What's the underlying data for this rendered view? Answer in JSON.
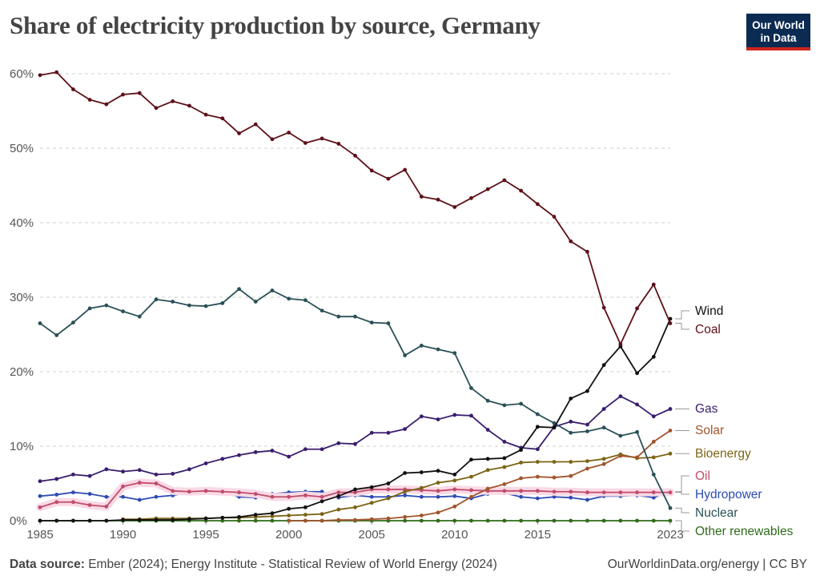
{
  "header": {
    "title": "Share of electricity production by source, Germany",
    "logo_line1": "Our World",
    "logo_line2": "in Data"
  },
  "footer": {
    "source_label": "Data source:",
    "source_text": "Ember (2024); Energy Institute - Statistical Review of World Energy (2024)",
    "credit": "OurWorldinData.org/energy | CC BY"
  },
  "colors": {
    "Coal": "#5e1019",
    "Wind": "#111111",
    "Gas": "#3a1d6e",
    "Solar": "#a0552b",
    "Bioenergy": "#7b6414",
    "Oil": "#c14c6a",
    "Hydropower": "#2c4bb5",
    "Nuclear": "#2a5058",
    "Other renewables": "#2f6b19"
  },
  "chart_data": {
    "type": "line",
    "title": "Share of electricity production by source, Germany",
    "xlabel": "",
    "ylabel": "",
    "xlim": [
      1985,
      2023
    ],
    "ylim": [
      0,
      60
    ],
    "y_ticks": [
      0,
      10,
      20,
      30,
      40,
      50,
      60
    ],
    "y_tick_labels": [
      "0%",
      "10%",
      "20%",
      "30%",
      "40%",
      "50%",
      "60%"
    ],
    "x_ticks": [
      1985,
      1990,
      1995,
      2000,
      2005,
      2010,
      2015,
      2023
    ],
    "x_tick_labels": [
      "1985",
      "1990",
      "1995",
      "2000",
      "2005",
      "2010",
      "2015",
      "2023"
    ],
    "grid": "horizontal dashed",
    "legend": "right, labels at line ends",
    "series": [
      {
        "name": "Coal",
        "x": [
          1985,
          1986,
          1987,
          1988,
          1989,
          1990,
          1991,
          1992,
          1993,
          1994,
          1995,
          1996,
          1997,
          1998,
          1999,
          2000,
          2001,
          2002,
          2003,
          2004,
          2005,
          2006,
          2007,
          2008,
          2009,
          2010,
          2011,
          2012,
          2013,
          2014,
          2015,
          2016,
          2017,
          2018,
          2019,
          2020,
          2021,
          2022,
          2023
        ],
        "values": [
          59.8,
          60.2,
          57.9,
          56.5,
          55.9,
          57.2,
          57.4,
          55.4,
          56.3,
          55.7,
          54.5,
          54.0,
          52.0,
          53.2,
          51.2,
          52.1,
          50.7,
          51.3,
          50.6,
          49.0,
          47.0,
          45.9,
          47.1,
          43.5,
          43.1,
          42.1,
          43.3,
          44.5,
          45.7,
          44.3,
          42.5,
          40.8,
          37.5,
          36.1,
          28.6,
          23.7,
          28.5,
          31.7,
          26.5
        ]
      },
      {
        "name": "Wind",
        "x": [
          1985,
          1986,
          1987,
          1988,
          1989,
          1990,
          1991,
          1992,
          1993,
          1994,
          1995,
          1996,
          1997,
          1998,
          1999,
          2000,
          2001,
          2002,
          2003,
          2004,
          2005,
          2006,
          2007,
          2008,
          2009,
          2010,
          2011,
          2012,
          2013,
          2014,
          2015,
          2016,
          2017,
          2018,
          2019,
          2020,
          2021,
          2022,
          2023
        ],
        "values": [
          0,
          0,
          0,
          0,
          0,
          0.1,
          0.1,
          0.1,
          0.1,
          0.2,
          0.3,
          0.4,
          0.5,
          0.8,
          1.0,
          1.6,
          1.8,
          2.6,
          3.3,
          4.2,
          4.5,
          5.0,
          6.4,
          6.5,
          6.7,
          6.2,
          8.2,
          8.3,
          8.4,
          9.5,
          12.6,
          12.5,
          16.4,
          17.4,
          20.9,
          23.4,
          19.8,
          22.0,
          27.1
        ]
      },
      {
        "name": "Gas",
        "x": [
          1985,
          1986,
          1987,
          1988,
          1989,
          1990,
          1991,
          1992,
          1993,
          1994,
          1995,
          1996,
          1997,
          1998,
          1999,
          2000,
          2001,
          2002,
          2003,
          2004,
          2005,
          2006,
          2007,
          2008,
          2009,
          2010,
          2011,
          2012,
          2013,
          2014,
          2015,
          2016,
          2017,
          2018,
          2019,
          2020,
          2021,
          2022,
          2023
        ],
        "values": [
          5.3,
          5.6,
          6.2,
          6.0,
          6.9,
          6.6,
          6.8,
          6.2,
          6.3,
          6.9,
          7.7,
          8.3,
          8.8,
          9.2,
          9.4,
          8.6,
          9.6,
          9.6,
          10.4,
          10.3,
          11.8,
          11.8,
          12.3,
          14.0,
          13.6,
          14.2,
          14.1,
          12.2,
          10.6,
          9.8,
          9.6,
          12.6,
          13.3,
          12.9,
          15.0,
          16.7,
          15.6,
          14.0,
          15.0
        ]
      },
      {
        "name": "Solar",
        "x": [
          2000,
          2001,
          2002,
          2003,
          2004,
          2005,
          2006,
          2007,
          2008,
          2009,
          2010,
          2011,
          2012,
          2013,
          2014,
          2015,
          2016,
          2017,
          2018,
          2019,
          2020,
          2021,
          2022,
          2023
        ],
        "values": [
          0,
          0,
          0,
          0.1,
          0.1,
          0.2,
          0.3,
          0.5,
          0.7,
          1.1,
          1.9,
          3.2,
          4.3,
          4.9,
          5.7,
          5.9,
          5.8,
          6.0,
          7.0,
          7.6,
          8.7,
          8.5,
          10.6,
          12.1
        ]
      },
      {
        "name": "Bioenergy",
        "x": [
          1990,
          1991,
          1992,
          1993,
          1994,
          1995,
          1996,
          1997,
          1998,
          1999,
          2000,
          2001,
          2002,
          2003,
          2004,
          2005,
          2006,
          2007,
          2008,
          2009,
          2010,
          2011,
          2012,
          2013,
          2014,
          2015,
          2016,
          2017,
          2018,
          2019,
          2020,
          2021,
          2022,
          2023
        ],
        "values": [
          0.2,
          0.2,
          0.3,
          0.3,
          0.3,
          0.3,
          0.4,
          0.4,
          0.5,
          0.6,
          0.7,
          0.8,
          0.9,
          1.5,
          1.8,
          2.4,
          3.0,
          3.9,
          4.4,
          5.1,
          5.4,
          5.9,
          6.8,
          7.2,
          7.8,
          7.9,
          7.9,
          7.9,
          8.0,
          8.3,
          8.9,
          8.4,
          8.5,
          9.0
        ]
      },
      {
        "name": "Oil",
        "x": [
          1985,
          1986,
          1987,
          1988,
          1989,
          1990,
          1991,
          1992,
          1993,
          1994,
          1995,
          1996,
          1997,
          1998,
          1999,
          2000,
          2001,
          2002,
          2003,
          2004,
          2005,
          2006,
          2007,
          2008,
          2009,
          2010,
          2011,
          2012,
          2013,
          2014,
          2015,
          2016,
          2017,
          2018,
          2019,
          2020,
          2021,
          2022,
          2023
        ],
        "values": [
          1.8,
          2.5,
          2.5,
          2.1,
          1.9,
          4.6,
          5.1,
          5.0,
          4.0,
          3.9,
          4.0,
          3.9,
          3.8,
          3.6,
          3.2,
          3.2,
          3.4,
          3.2,
          3.8,
          3.8,
          4.2,
          4.2,
          4.2,
          4.1,
          4.0,
          4.2,
          4.1,
          4.0,
          4.0,
          4.0,
          4.0,
          3.9,
          3.9,
          3.8,
          3.8,
          3.8,
          3.8,
          3.8,
          3.8
        ]
      },
      {
        "name": "Hydropower",
        "x": [
          1985,
          1986,
          1987,
          1988,
          1989,
          1990,
          1991,
          1992,
          1993,
          1994,
          1995,
          1996,
          1997,
          1998,
          1999,
          2000,
          2001,
          2002,
          2003,
          2004,
          2005,
          2006,
          2007,
          2008,
          2009,
          2010,
          2011,
          2012,
          2013,
          2014,
          2015,
          2016,
          2017,
          2018,
          2019,
          2020,
          2021,
          2022,
          2023
        ],
        "values": [
          3.3,
          3.5,
          3.8,
          3.6,
          3.2,
          3.2,
          2.8,
          3.2,
          3.4,
          3.8,
          4.1,
          3.9,
          3.2,
          3.1,
          3.6,
          3.8,
          3.9,
          3.9,
          3.1,
          3.4,
          3.2,
          3.2,
          3.4,
          3.2,
          3.2,
          3.3,
          3.0,
          3.6,
          3.7,
          3.2,
          3.0,
          3.2,
          3.1,
          2.8,
          3.3,
          3.3,
          3.4,
          3.1,
          3.9
        ]
      },
      {
        "name": "Nuclear",
        "x": [
          1985,
          1986,
          1987,
          1988,
          1989,
          1990,
          1991,
          1992,
          1993,
          1994,
          1995,
          1996,
          1997,
          1998,
          1999,
          2000,
          2001,
          2002,
          2003,
          2004,
          2005,
          2006,
          2007,
          2008,
          2009,
          2010,
          2011,
          2012,
          2013,
          2014,
          2015,
          2016,
          2017,
          2018,
          2019,
          2020,
          2021,
          2022,
          2023
        ],
        "values": [
          26.5,
          24.9,
          26.6,
          28.5,
          28.9,
          28.1,
          27.4,
          29.7,
          29.4,
          28.9,
          28.8,
          29.2,
          31.1,
          29.4,
          30.9,
          29.8,
          29.6,
          28.2,
          27.4,
          27.4,
          26.6,
          26.5,
          22.2,
          23.5,
          23.0,
          22.5,
          17.8,
          16.1,
          15.5,
          15.7,
          14.3,
          13.1,
          11.8,
          12.0,
          12.5,
          11.4,
          11.9,
          6.2,
          1.7
        ]
      },
      {
        "name": "Other renewables",
        "x": [
          1985,
          1986,
          1987,
          1988,
          1989,
          1990,
          1991,
          1992,
          1993,
          1994,
          1995,
          1996,
          1997,
          1998,
          1999,
          2000,
          2001,
          2002,
          2003,
          2004,
          2005,
          2006,
          2007,
          2008,
          2009,
          2010,
          2011,
          2012,
          2013,
          2014,
          2015,
          2016,
          2017,
          2018,
          2019,
          2020,
          2021,
          2022,
          2023
        ],
        "values": [
          0,
          0,
          0,
          0,
          0,
          0,
          0,
          0,
          0,
          0,
          0,
          0,
          0,
          0,
          0,
          0,
          0,
          0,
          0,
          0,
          0,
          0,
          0,
          0,
          0,
          0,
          0,
          0,
          0,
          0,
          0,
          0,
          0,
          0,
          0,
          0,
          0,
          0,
          0
        ]
      }
    ]
  }
}
